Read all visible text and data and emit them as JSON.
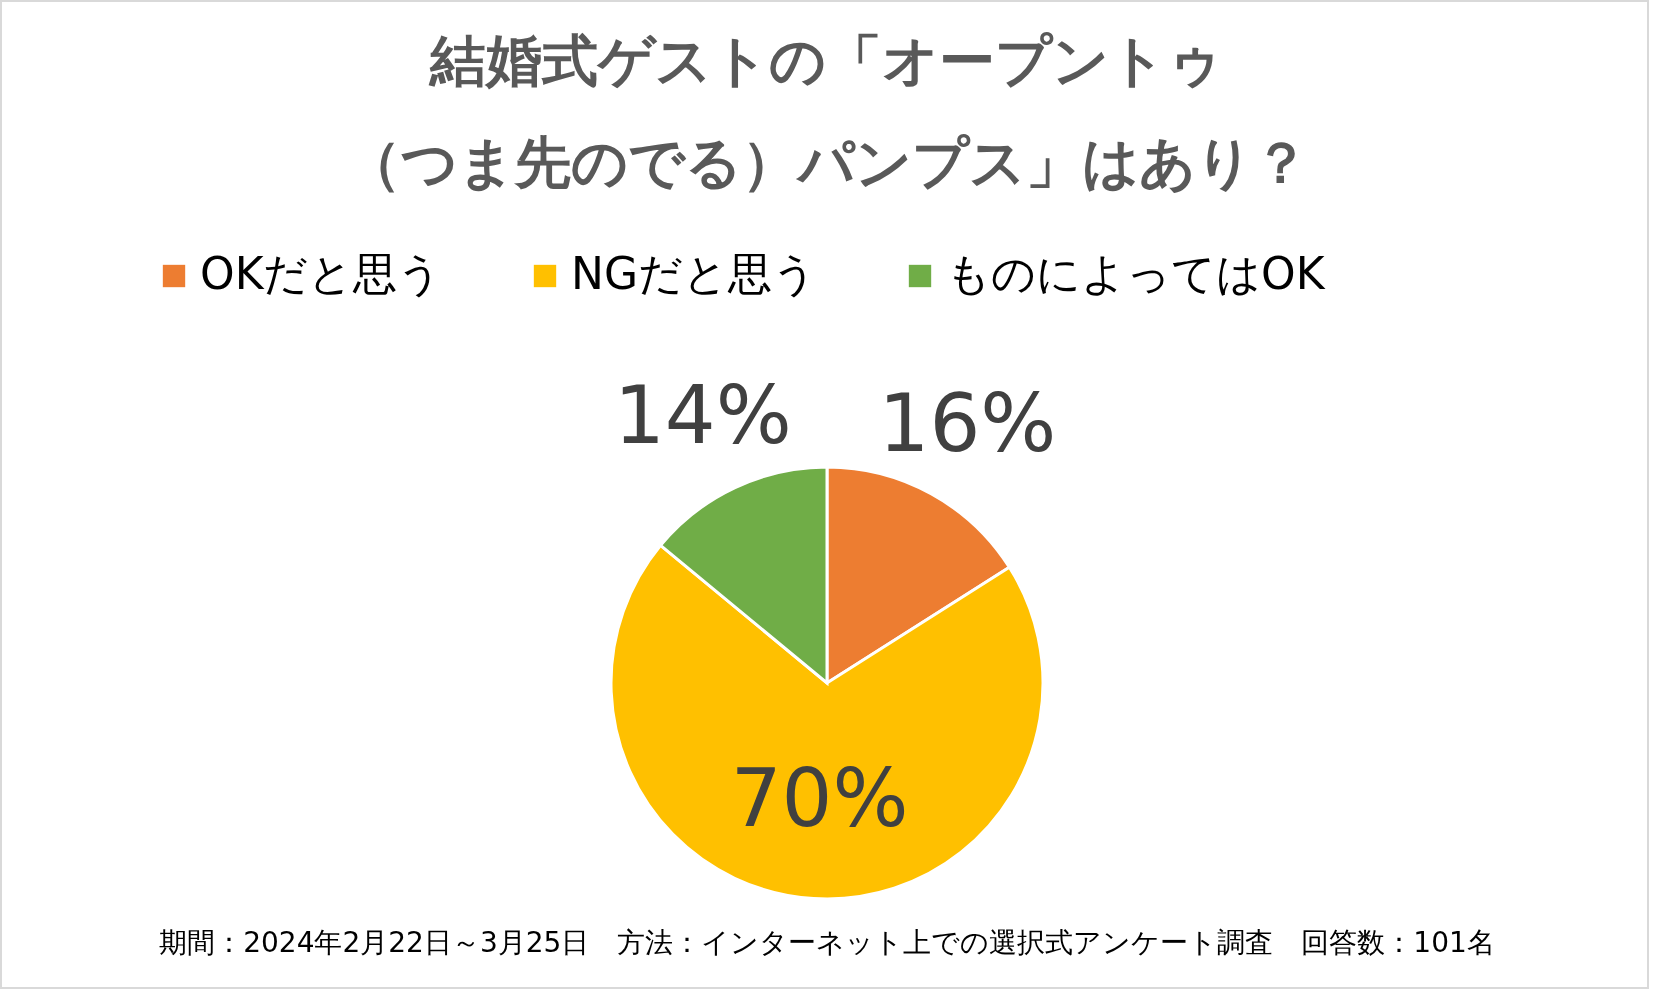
{
  "chart_data": {
    "type": "pie",
    "title": "結婚式ゲストの「オープントゥ（つま先のでる）パンプス」はあり？",
    "categories": [
      "OKだと思う",
      "NGだと思う",
      "ものによってはOK"
    ],
    "values": [
      16,
      70,
      14
    ],
    "value_labels": [
      "16%",
      "70%",
      "14%"
    ],
    "colors": [
      "#ed7d31",
      "#ffc000",
      "#70ad47"
    ],
    "legend": "top",
    "annotations": [
      "期間：2024年2月22日～3月25日　方法：インターネット上での選択式アンケート調査　回答数：101名"
    ]
  }
}
